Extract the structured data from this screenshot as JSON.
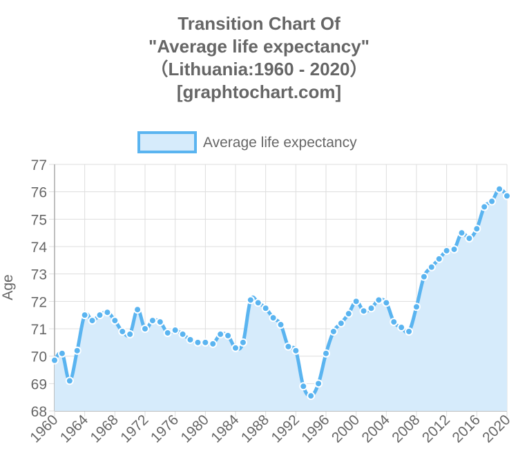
{
  "title_lines": [
    "Transition Chart Of",
    "\"Average life expectancy\"",
    "（Lithuania:1960 - 2020）",
    "[graphtochart.com]"
  ],
  "chart_data": {
    "type": "area",
    "title": "Transition Chart Of \"Average life expectancy\" （Lithuania:1960 - 2020） [graphtochart.com]",
    "xlabel": "",
    "ylabel": "Age",
    "ylim": [
      68,
      77
    ],
    "yticks": [
      "68",
      "69",
      "70",
      "71",
      "72",
      "73",
      "74",
      "75",
      "76",
      "77"
    ],
    "xticks": [
      "1960",
      "1964",
      "1968",
      "1972",
      "1976",
      "1980",
      "1984",
      "1988",
      "1992",
      "1996",
      "2000",
      "2004",
      "2008",
      "2012",
      "2016",
      "2020"
    ],
    "legend_position": "top",
    "grid": true,
    "line_color": "#5ab4f0",
    "fill_color": "#d6ebfb",
    "x": [
      1960,
      1961,
      1962,
      1963,
      1964,
      1965,
      1966,
      1967,
      1968,
      1969,
      1970,
      1971,
      1972,
      1973,
      1974,
      1975,
      1976,
      1977,
      1978,
      1979,
      1980,
      1981,
      1982,
      1983,
      1984,
      1985,
      1986,
      1987,
      1988,
      1989,
      1990,
      1991,
      1992,
      1993,
      1994,
      1995,
      1996,
      1997,
      1998,
      1999,
      2000,
      2001,
      2002,
      2003,
      2004,
      2005,
      2006,
      2007,
      2008,
      2009,
      2010,
      2011,
      2012,
      2013,
      2014,
      2015,
      2016,
      2017,
      2018,
      2019,
      2020
    ],
    "series": [
      {
        "name": "Average life expectancy",
        "values": [
          69.85,
          70.1,
          69.1,
          70.2,
          71.5,
          71.3,
          71.5,
          71.6,
          71.3,
          70.9,
          70.8,
          71.7,
          71.0,
          71.3,
          71.25,
          70.85,
          70.95,
          70.8,
          70.6,
          70.5,
          70.5,
          70.45,
          70.8,
          70.75,
          70.3,
          70.5,
          72.05,
          71.95,
          71.75,
          71.4,
          71.15,
          70.35,
          70.2,
          68.9,
          68.55,
          69.0,
          70.1,
          70.9,
          71.2,
          71.55,
          72.0,
          71.65,
          71.75,
          72.05,
          71.95,
          71.25,
          71.05,
          70.9,
          71.8,
          72.9,
          73.25,
          73.55,
          73.85,
          73.9,
          74.5,
          74.3,
          74.65,
          75.45,
          75.65,
          76.1,
          75.85
        ]
      }
    ]
  }
}
